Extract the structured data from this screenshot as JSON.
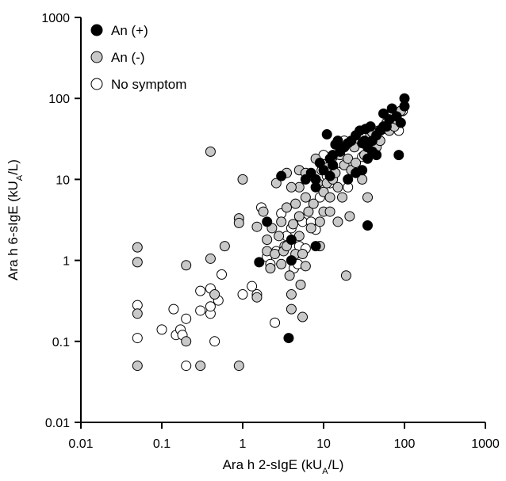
{
  "chart_data": {
    "type": "scatter",
    "title": "",
    "xlabel": "Ara h 2-sIgE (kUₐ/L)",
    "ylabel": "Ara h 6-sIgE (kUₐ/L)",
    "x_scale": "log",
    "y_scale": "log",
    "xlim": [
      0.01,
      1000
    ],
    "ylim": [
      0.01,
      1000
    ],
    "x_ticks": [
      0.01,
      0.1,
      1,
      10,
      100,
      1000
    ],
    "y_ticks": [
      0.01,
      0.1,
      1,
      10,
      100,
      1000
    ],
    "x_tick_labels": [
      "0.01",
      "0.1",
      "1",
      "10",
      "100",
      "1000"
    ],
    "y_tick_labels": [
      "0.01",
      "0.1",
      "1",
      "10",
      "100",
      "1000"
    ],
    "xlabel_main": "Ara h 2-sIgE (kU",
    "xlabel_sub": "A",
    "xlabel_end": "/L)",
    "ylabel_main": "Ara h 6-sIgE (kU",
    "ylabel_sub": "A",
    "ylabel_end": "/L)",
    "grid": false,
    "legend_position": "top-left",
    "colors": {
      "an_pos": "#000000",
      "an_neg": "#c8c8c8",
      "no_symptom": "#ffffff",
      "edge": "#000000"
    },
    "series": [
      {
        "name": "An (+)",
        "points": [
          [
            100,
            100
          ],
          [
            100,
            80
          ],
          [
            90,
            50
          ],
          [
            80,
            60
          ],
          [
            70,
            75
          ],
          [
            65,
            55
          ],
          [
            60,
            45
          ],
          [
            55,
            65
          ],
          [
            55,
            45
          ],
          [
            50,
            40
          ],
          [
            45,
            35
          ],
          [
            40,
            30
          ],
          [
            38,
            45
          ],
          [
            35,
            25
          ],
          [
            33,
            42
          ],
          [
            32,
            30
          ],
          [
            30,
            28
          ],
          [
            28,
            40
          ],
          [
            25,
            35
          ],
          [
            22,
            30
          ],
          [
            20,
            28
          ],
          [
            18,
            25
          ],
          [
            16,
            22
          ],
          [
            15,
            30
          ],
          [
            14,
            27
          ],
          [
            13,
            20
          ],
          [
            13,
            15
          ],
          [
            12,
            18
          ],
          [
            12,
            11
          ],
          [
            11,
            36
          ],
          [
            10,
            13
          ],
          [
            9,
            16
          ],
          [
            8,
            10
          ],
          [
            8,
            8
          ],
          [
            7,
            12
          ],
          [
            6,
            10
          ],
          [
            3,
            11
          ],
          [
            4,
            1.8
          ],
          [
            4,
            1
          ],
          [
            2,
            3
          ],
          [
            1.6,
            0.95
          ],
          [
            8,
            1.5
          ],
          [
            20,
            10
          ],
          [
            25,
            12
          ],
          [
            30,
            13
          ],
          [
            35,
            18
          ],
          [
            40,
            22
          ],
          [
            45,
            20
          ],
          [
            85,
            20
          ],
          [
            35,
            2.7
          ],
          [
            3.7,
            0.11
          ]
        ]
      },
      {
        "name": "An (-)",
        "points": [
          [
            0.05,
            1.45
          ],
          [
            0.05,
            0.95
          ],
          [
            0.05,
            0.22
          ],
          [
            0.05,
            0.05
          ],
          [
            0.2,
            0.87
          ],
          [
            0.2,
            0.1
          ],
          [
            0.3,
            0.05
          ],
          [
            0.4,
            22
          ],
          [
            0.4,
            1.05
          ],
          [
            0.45,
            0.38
          ],
          [
            0.6,
            1.5
          ],
          [
            0.9,
            3.3
          ],
          [
            0.9,
            2.9
          ],
          [
            0.9,
            0.05
          ],
          [
            1,
            10
          ],
          [
            1.5,
            2.6
          ],
          [
            1.5,
            0.35
          ],
          [
            1.8,
            4
          ],
          [
            2,
            1.8
          ],
          [
            2,
            1.3
          ],
          [
            2.2,
            0.8
          ],
          [
            2.5,
            1.2
          ],
          [
            2.6,
            9
          ],
          [
            2.8,
            2
          ],
          [
            3,
            3
          ],
          [
            3.2,
            1.3
          ],
          [
            3.5,
            12
          ],
          [
            3.5,
            4.5
          ],
          [
            3.5,
            1.5
          ],
          [
            3.8,
            0.65
          ],
          [
            4,
            0.38
          ],
          [
            4,
            0.25
          ],
          [
            4.2,
            2.8
          ],
          [
            4.5,
            5
          ],
          [
            4.5,
            1.2
          ],
          [
            5,
            13
          ],
          [
            5,
            8
          ],
          [
            5,
            3.5
          ],
          [
            5,
            2
          ],
          [
            5.2,
            0.5
          ],
          [
            5.5,
            0.2
          ],
          [
            6,
            12
          ],
          [
            6,
            6
          ],
          [
            6.5,
            4
          ],
          [
            7,
            2.5
          ],
          [
            7.5,
            5
          ],
          [
            8,
            18
          ],
          [
            8.5,
            9
          ],
          [
            9,
            1.5
          ],
          [
            9,
            3
          ],
          [
            10,
            7
          ],
          [
            10,
            4
          ],
          [
            11,
            14
          ],
          [
            11,
            9
          ],
          [
            12,
            6
          ],
          [
            13,
            10
          ],
          [
            14,
            12
          ],
          [
            15,
            8
          ],
          [
            15,
            3
          ],
          [
            16,
            20
          ],
          [
            17,
            6
          ],
          [
            18,
            15
          ],
          [
            19,
            0.65
          ],
          [
            20,
            18
          ],
          [
            21,
            3.5
          ],
          [
            22,
            13
          ],
          [
            24,
            25
          ],
          [
            25,
            16
          ],
          [
            28,
            12
          ],
          [
            30,
            10
          ],
          [
            32,
            20
          ],
          [
            35,
            6
          ],
          [
            38,
            35
          ],
          [
            40,
            38
          ],
          [
            45,
            25
          ],
          [
            50,
            30
          ],
          [
            60,
            50
          ],
          [
            65,
            40
          ],
          [
            75,
            45
          ],
          [
            80,
            55
          ],
          [
            90,
            70
          ],
          [
            5.5,
            1.2
          ],
          [
            6,
            0.85
          ],
          [
            3,
            0.9
          ],
          [
            2.3,
            2.5
          ],
          [
            4,
            8
          ],
          [
            12,
            4
          ]
        ]
      },
      {
        "name": "No symptom",
        "points": [
          [
            0.05,
            0.28
          ],
          [
            0.05,
            0.11
          ],
          [
            0.1,
            0.14
          ],
          [
            0.14,
            0.25
          ],
          [
            0.15,
            0.12
          ],
          [
            0.17,
            0.14
          ],
          [
            0.18,
            0.12
          ],
          [
            0.2,
            0.19
          ],
          [
            0.2,
            0.05
          ],
          [
            0.3,
            0.24
          ],
          [
            0.3,
            0.42
          ],
          [
            0.4,
            0.22
          ],
          [
            0.4,
            0.45
          ],
          [
            0.4,
            0.27
          ],
          [
            0.45,
            0.1
          ],
          [
            0.5,
            0.32
          ],
          [
            0.55,
            0.67
          ],
          [
            1,
            0.38
          ],
          [
            1.3,
            0.48
          ],
          [
            1.5,
            0.38
          ],
          [
            1.7,
            4.5
          ],
          [
            2,
            1.1
          ],
          [
            2.2,
            0.9
          ],
          [
            2.5,
            0.17
          ],
          [
            2.6,
            1.3
          ],
          [
            3,
            3.8
          ],
          [
            3.3,
            1.5
          ],
          [
            3.5,
            2
          ],
          [
            4,
            2.5
          ],
          [
            4.3,
            0.8
          ],
          [
            4.8,
            0.9
          ],
          [
            5,
            1.5
          ],
          [
            5.5,
            3
          ],
          [
            6,
            1.4
          ],
          [
            6.5,
            11
          ],
          [
            7,
            3
          ],
          [
            8,
            2.4
          ],
          [
            9,
            6
          ],
          [
            9.5,
            13
          ],
          [
            10,
            20
          ],
          [
            11,
            11
          ],
          [
            12,
            9
          ],
          [
            13,
            14
          ],
          [
            15,
            20
          ],
          [
            16,
            16
          ],
          [
            18,
            30
          ],
          [
            20,
            8
          ],
          [
            25,
            14
          ],
          [
            30,
            19
          ],
          [
            38,
            25
          ],
          [
            42,
            32
          ],
          [
            48,
            40
          ],
          [
            55,
            42
          ],
          [
            65,
            55
          ],
          [
            85,
            40
          ],
          [
            95,
            70
          ]
        ]
      }
    ]
  }
}
